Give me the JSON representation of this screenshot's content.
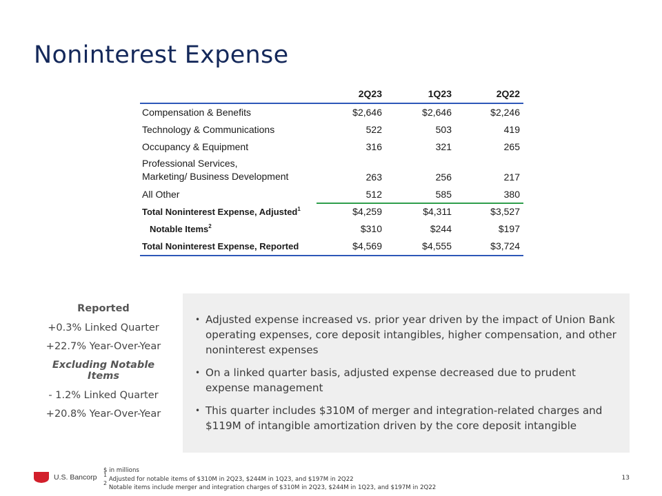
{
  "title": "Noninterest Expense",
  "table": {
    "columns": [
      "2Q23",
      "1Q23",
      "2Q22"
    ],
    "rows": [
      {
        "label": "Compensation & Benefits",
        "values": [
          "$2,646",
          "$2,646",
          "$2,246"
        ]
      },
      {
        "label": "Technology & Communications",
        "values": [
          "522",
          "503",
          "419"
        ]
      },
      {
        "label": "Occupancy & Equipment",
        "values": [
          "316",
          "321",
          "265"
        ]
      },
      {
        "label_line1": "Professional Services,",
        "label_line2": "Marketing/ Business Development",
        "values": [
          "263",
          "256",
          "217"
        ]
      },
      {
        "label": "All Other",
        "values": [
          "512",
          "585",
          "380"
        ]
      },
      {
        "label": "Total Noninterest Expense, Adjusted",
        "sup": "1",
        "values": [
          "$4,259",
          "$4,311",
          "$3,527"
        ]
      },
      {
        "label": "Notable Items",
        "sup": "2",
        "values": [
          "$310",
          "$244",
          "$197"
        ]
      },
      {
        "label": "Total Noninterest Expense, Reported",
        "values": [
          "$4,569",
          "$4,555",
          "$3,724"
        ]
      }
    ]
  },
  "summary": {
    "reported_heading": "Reported",
    "reported_lq": "+0.3% Linked Quarter",
    "reported_yoy": "+22.7% Year-Over-Year",
    "excl_heading": "Excluding Notable Items",
    "excl_lq": "- 1.2% Linked Quarter",
    "excl_yoy": "+20.8% Year-Over-Year"
  },
  "bullets": [
    "Adjusted expense increased vs. prior year driven by the impact of Union Bank operating expenses, core deposit intangibles, higher compensation, and other noninterest expenses",
    "On a linked quarter basis, adjusted expense decreased due to prudent expense management",
    "This quarter includes $310M of merger and integration-related charges and $119M of intangible amortization driven by the core deposit intangible"
  ],
  "footer": {
    "logo_text": "U.S. Bancorp",
    "note_units": "$ in millions",
    "note1_mark": "1",
    "note1": " Adjusted for notable items of $310M in 2Q23, $244M in 1Q23, and $197M in 2Q22",
    "note2_mark": "2",
    "note2": " Notable items include merger and integration charges of $310M in 2Q23, $244M in 1Q23, and $197M in 2Q22",
    "page_number": "13"
  },
  "colors": {
    "title": "#14285a",
    "table_rule": "#2d57b8",
    "subtotal_rule": "#2e9e4a",
    "box_bg": "#efefef",
    "logo_red": "#d21f2b"
  }
}
